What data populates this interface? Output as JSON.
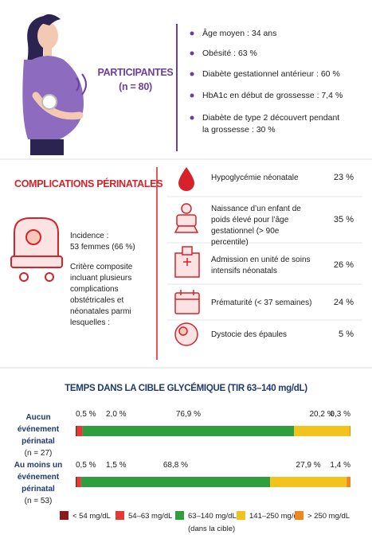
{
  "participants": {
    "title": "PARTICIPANTES",
    "n": "(n = 80)",
    "items": [
      "Âge moyen : 34 ans",
      "Obésité : 63 %",
      "Diabète gestationnel antérieur : 60 %",
      "HbA1c en début de grossesse : 7,4 %",
      "Diabète de type 2 découvert pendant la grossesse : 30 %"
    ]
  },
  "complications": {
    "title": "COMPLICATIONS PÉRINATALES",
    "incidence_label": "Incidence :",
    "incidence": "53 femmes (66 %)",
    "note": "Critère composite incluant plusieurs complications obstétricales et néonatales parmi lesquelles :",
    "outcomes": [
      {
        "label": "Hypoglycémie néonatale",
        "value": "23 %"
      },
      {
        "label": "Naissance d’un enfant de poids élevé pour l’âge gestationnel (> 90e percentile)",
        "value": "35 %"
      },
      {
        "label": "Admission en unité de soins intensifs néonatals",
        "value": "26 %"
      },
      {
        "label": "Prématurité (< 37 semaines)",
        "value": "24 %"
      },
      {
        "label": "Dystocie des épaules",
        "value": "5 %"
      }
    ]
  },
  "tir": {
    "title": "TEMPS DANS LA CIBLE GLYCÉMIQUE (TIR 63–140 mg/dL)",
    "groups": [
      {
        "label": "Aucun événement périnatal",
        "n": "(n = 27)",
        "values": [
          0.5,
          2.0,
          76.9,
          20.2,
          0.3
        ],
        "value_labels": [
          "0,5 %",
          "2,0 %",
          "76,9 %",
          "20,2 %",
          "0,3 %"
        ]
      },
      {
        "label": "Au moins un événement périnatal",
        "n": "(n = 53)",
        "values": [
          0.5,
          1.5,
          68.8,
          27.9,
          1.4
        ],
        "value_labels": [
          "0,5 %",
          "1,5 %",
          "68,8 %",
          "27,9 %",
          "1,4 %"
        ]
      }
    ],
    "legend": [
      {
        "name": "< 54 mg/dL",
        "color": "#8b1a1a"
      },
      {
        "name": "54–63 mg/dL",
        "color": "#e53935"
      },
      {
        "name": "63–140 mg/dL",
        "color": "#2e9e3e"
      },
      {
        "name": "141–250 mg/dL",
        "color": "#f2c31c"
      },
      {
        "name": "> 250 mg/dL",
        "color": "#f0861f"
      }
    ],
    "legend_note": "(dans la cible)"
  }
}
